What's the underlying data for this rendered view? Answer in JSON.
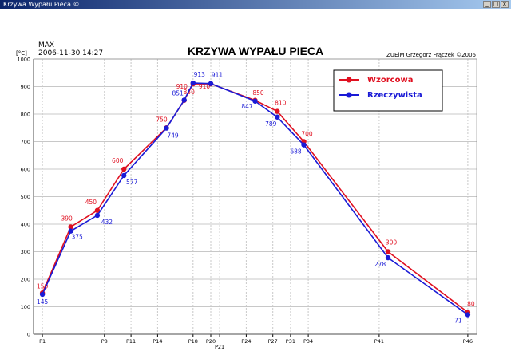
{
  "window": {
    "title": "Krzywa Wypału Pieca ©",
    "buttons": [
      "_",
      "□",
      "x"
    ]
  },
  "header": {
    "max_label": "MAX",
    "datetime": "2006-11-30  14:27",
    "author": "ZUEiM Grzegorz Frączek ©2006"
  },
  "colors": {
    "wzorcowa": "#e01020",
    "rzeczywista": "#1a1ad6",
    "grid": "#c8c8c8",
    "axis": "#000000"
  },
  "chart_data": {
    "type": "line",
    "title": "KRZYWA WYPAŁU PIECA",
    "ylabel": "[°C]",
    "xlabel": "",
    "ylim": [
      0,
      1000
    ],
    "yticks": [
      0,
      100,
      200,
      300,
      400,
      500,
      600,
      700,
      800,
      900,
      1000
    ],
    "grid": true,
    "legend": "top-right",
    "x_labels": [
      {
        "label": "P1",
        "x": 1
      },
      {
        "label": "P8",
        "x": 8
      },
      {
        "label": "P11",
        "x": 11
      },
      {
        "label": "P14",
        "x": 14
      },
      {
        "label": "P18",
        "x": 18
      },
      {
        "label": "P20",
        "x": 20
      },
      {
        "label": "P21",
        "x": 21
      },
      {
        "label": "P24",
        "x": 24
      },
      {
        "label": "P27",
        "x": 27
      },
      {
        "label": "P31",
        "x": 29
      },
      {
        "label": "P34",
        "x": 31
      },
      {
        "label": "P41",
        "x": 39
      },
      {
        "label": "P46",
        "x": 49
      }
    ],
    "series": [
      {
        "name": "Wzorcowa",
        "color": "#e01020",
        "points": [
          {
            "x": 1,
            "y": 150,
            "label": "150"
          },
          {
            "x": 4.2,
            "y": 390,
            "label": "390"
          },
          {
            "x": 7.2,
            "y": 450,
            "label": "450"
          },
          {
            "x": 10.2,
            "y": 600,
            "label": "600"
          },
          {
            "x": 15,
            "y": 750,
            "label": "750"
          },
          {
            "x": 17,
            "y": 850,
            "label": "850"
          },
          {
            "x": 18,
            "y": 910,
            "label": "910"
          },
          {
            "x": 20,
            "y": 910,
            "label": "910"
          },
          {
            "x": 25,
            "y": 850,
            "label": "850"
          },
          {
            "x": 27.5,
            "y": 810,
            "label": "810"
          },
          {
            "x": 30.5,
            "y": 700,
            "label": "700"
          },
          {
            "x": 40,
            "y": 300,
            "label": "300"
          },
          {
            "x": 49,
            "y": 80,
            "label": "80"
          }
        ]
      },
      {
        "name": "Rzeczywista",
        "color": "#1a1ad6",
        "points": [
          {
            "x": 1,
            "y": 145,
            "label": "145"
          },
          {
            "x": 4.2,
            "y": 375,
            "label": "375"
          },
          {
            "x": 7.2,
            "y": 432,
            "label": "432"
          },
          {
            "x": 10.2,
            "y": 577,
            "label": "577"
          },
          {
            "x": 15,
            "y": 749,
            "label": "749"
          },
          {
            "x": 17,
            "y": 851,
            "label": "851"
          },
          {
            "x": 18,
            "y": 913,
            "label": "913"
          },
          {
            "x": 20,
            "y": 911,
            "label": "911"
          },
          {
            "x": 25,
            "y": 847,
            "label": "847"
          },
          {
            "x": 27.5,
            "y": 789,
            "label": "789"
          },
          {
            "x": 30.5,
            "y": 688,
            "label": "688"
          },
          {
            "x": 40,
            "y": 278,
            "label": "278"
          },
          {
            "x": 49,
            "y": 71,
            "label": "71"
          }
        ]
      }
    ]
  }
}
